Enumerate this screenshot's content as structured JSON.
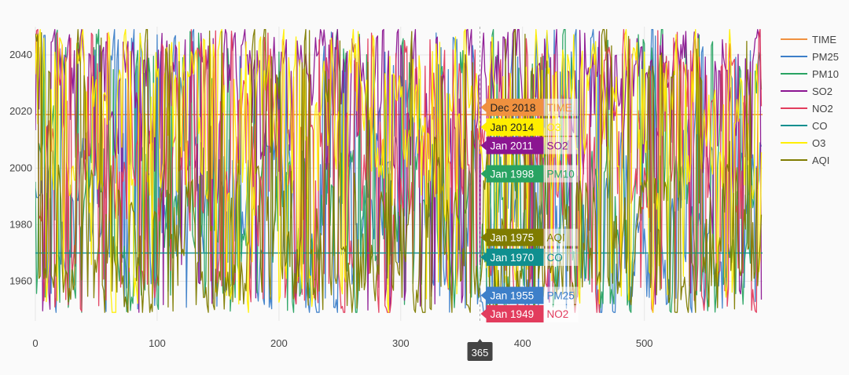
{
  "chart_data": {
    "type": "line",
    "title": "",
    "xlabel": "",
    "ylabel": "",
    "xlim": [
      0,
      597
    ],
    "ylim": [
      1946,
      2050
    ],
    "x_ticks": [
      0,
      100,
      200,
      300,
      400,
      500
    ],
    "y_ticks": [
      1960,
      1980,
      2000,
      2020,
      2040
    ],
    "grid": true,
    "legend_position": "top-right",
    "n_points": 597,
    "series": [
      {
        "name": "TIME",
        "color": "#f0913f",
        "behavior": "constant",
        "value": 2018.9
      },
      {
        "name": "PM25",
        "color": "#3d7fc9",
        "behavior": "noise",
        "min": 1949,
        "max": 2049,
        "bias": 0.42
      },
      {
        "name": "PM10",
        "color": "#28a362",
        "behavior": "noise",
        "min": 1949,
        "max": 2049,
        "bias": 0.38
      },
      {
        "name": "SO2",
        "color": "#8b1591",
        "behavior": "noise",
        "min": 1949,
        "max": 2049,
        "bias": 0.72
      },
      {
        "name": "NO2",
        "color": "#e23c5d",
        "behavior": "noise",
        "min": 1949,
        "max": 2049,
        "bias": 0.55
      },
      {
        "name": "CO",
        "color": "#0f8f8f",
        "behavior": "constant",
        "value": 1970
      },
      {
        "name": "O3",
        "color": "#ffee00",
        "behavior": "noise",
        "min": 1949,
        "max": 2049,
        "bias": 0.62
      },
      {
        "name": "AQI",
        "color": "#7f7c00",
        "behavior": "noise",
        "min": 1949,
        "max": 2049,
        "bias": 0.3
      }
    ],
    "hover": {
      "x_label": "365",
      "x_value": 365,
      "labels": [
        {
          "series": "TIME",
          "text": "Dec 2018",
          "y": 2021.5,
          "bg": "#f0913f",
          "fg": "#222222"
        },
        {
          "series": "O3",
          "text": "Jan 2014",
          "y": 2014.5,
          "bg": "#ffee00",
          "fg": "#222222"
        },
        {
          "series": "SO2",
          "text": "Jan 2011",
          "y": 2008,
          "bg": "#8b1591",
          "fg": "#ffffff"
        },
        {
          "series": "PM10",
          "text": "Jan 1998",
          "y": 1998,
          "bg": "#28a362",
          "fg": "#ffffff"
        },
        {
          "series": "AQI",
          "text": "Jan 1975",
          "y": 1975.5,
          "bg": "#7f7c00",
          "fg": "#ffffff"
        },
        {
          "series": "CO",
          "text": "Jan 1970",
          "y": 1968.5,
          "bg": "#0f8f8f",
          "fg": "#ffffff"
        },
        {
          "series": "PM25",
          "text": "Jan 1955",
          "y": 1955,
          "bg": "#3d7fc9",
          "fg": "#ffffff"
        },
        {
          "series": "NO2",
          "text": "Jan 1949",
          "y": 1948.5,
          "bg": "#e23c5d",
          "fg": "#ffffff"
        }
      ]
    }
  }
}
